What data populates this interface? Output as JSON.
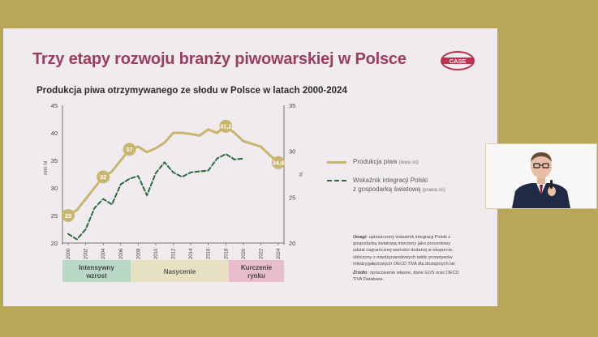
{
  "colors": {
    "background": "#B9A758",
    "slide": "#EFEBEE",
    "title": "#9C3D5E",
    "production": "#C9B56E",
    "integration": "#2E6B3E",
    "phase1": "#B9D8C6",
    "phase2": "#E8E0C2",
    "phase3": "#E7BCCB"
  },
  "slide": {
    "title": "Trzy etapy rozwoju branży piwowarskiej w Polsce",
    "logo_text": "CASE",
    "subtitle": "Produkcja piwa otrzymywanego ze słodu w Polsce w latach 2000-2024"
  },
  "legend": {
    "production_label": "Produkcja piwa",
    "production_axis": "(lewa oś)",
    "integration_label_1": "Wskaźnik integracji Polski",
    "integration_label_2": "z gospodarką światową",
    "integration_axis": "(prawa oś)"
  },
  "note": {
    "label": "Uwagi",
    "text": "uproszczony wskaźnik integracji Polski z gospodarką światową mierzony jako procentowy udział zagranicznej wartości dodanej w eksporcie, obliczony z międzynarodowych tablic przepływów międzygałęziowych OECD TiVA dla dostępnych lat.",
    "source_label": "Źródło",
    "source_text": "opracowanie własne, dane GUS oraz OECD TiVA Database."
  },
  "phases": [
    {
      "label_1": "Intensywny",
      "label_2": "wzrost"
    },
    {
      "label_1": "Nasycenie",
      "label_2": ""
    },
    {
      "label_1": "Kurczenie",
      "label_2": "rynku"
    }
  ],
  "chart_data": {
    "type": "line",
    "x": [
      2000,
      2001,
      2002,
      2003,
      2004,
      2005,
      2006,
      2007,
      2008,
      2009,
      2010,
      2011,
      2012,
      2013,
      2014,
      2015,
      2016,
      2017,
      2018,
      2019,
      2020,
      2021,
      2022,
      2023,
      2024
    ],
    "x_tick_labels": [
      "2000",
      "2002",
      "2004",
      "2006",
      "2008",
      "2010",
      "2012",
      "2014",
      "2016",
      "2018",
      "2020",
      "2022",
      "2024"
    ],
    "ylabel_left": "mln hl",
    "ylabel_right": "%",
    "ylim_left": [
      20,
      45
    ],
    "ylim_right": [
      20,
      35
    ],
    "yticks_left": [
      20,
      25,
      30,
      35,
      40,
      45
    ],
    "yticks_right": [
      20,
      25,
      30,
      35
    ],
    "series": [
      {
        "name": "Produkcja piwa (lewa oś)",
        "axis": "left",
        "style": "solid",
        "values": [
          25,
          26,
          28,
          30,
          32,
          33,
          35,
          37,
          37.5,
          36.5,
          37.2,
          38.2,
          40,
          40,
          39.8,
          39.5,
          40.6,
          40,
          41.2,
          40,
          38.5,
          38,
          37.5,
          36,
          34.6
        ],
        "labeled": {
          "2000": "25",
          "2004": "32",
          "2007": "37",
          "2018": "41,2",
          "2024": "34,6"
        }
      },
      {
        "name": "Wskaźnik integracji Polski z gospodarką światową (prawa oś)",
        "axis": "right",
        "style": "dashed",
        "values": [
          21,
          20.4,
          21.5,
          23.8,
          24.8,
          24.2,
          26.4,
          27,
          27.3,
          25.2,
          27.6,
          28.8,
          27.7,
          27.2,
          27.7,
          27.8,
          27.9,
          29.2,
          29.7,
          29.1,
          29.2,
          null,
          null,
          null,
          null
        ]
      }
    ]
  }
}
